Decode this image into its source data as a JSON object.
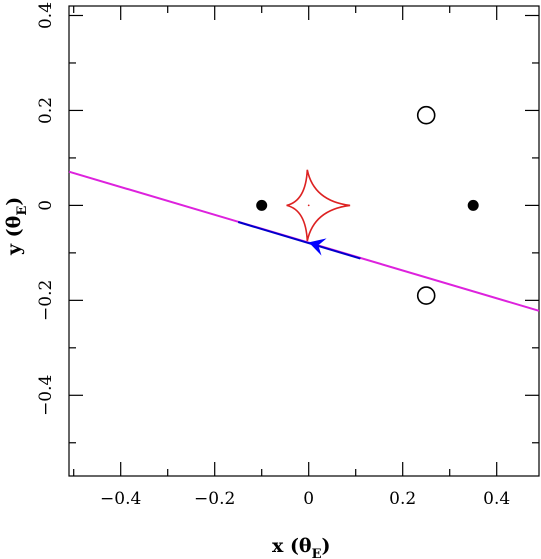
{
  "chart_data": {
    "type": "scatter",
    "title": "",
    "xlabel": "x (θE)",
    "ylabel": "y (θE)",
    "xlabel_parts": {
      "main": "x (θ",
      "sub": "E",
      "end": ")"
    },
    "ylabel_parts": {
      "main": "y (θ",
      "sub": "E",
      "end": ")"
    },
    "xlim": [
      -0.51,
      0.49
    ],
    "ylim": [
      -0.57,
      0.42
    ],
    "xticks": [
      -0.4,
      -0.2,
      0,
      0.2,
      0.4
    ],
    "yticks": [
      -0.4,
      -0.2,
      0,
      0.2,
      0.4
    ],
    "xtick_labels": [
      "−0.4",
      "−0.2",
      "0",
      "0.2",
      "0.4"
    ],
    "ytick_labels": [
      "−0.4",
      "−0.2",
      "0",
      "0.2",
      "0.4"
    ],
    "grid": false,
    "lenses": {
      "x": [
        -0.1,
        0.35
      ],
      "y": [
        0,
        0
      ],
      "color": "#000000"
    },
    "images": {
      "x": [
        0.25,
        0.25
      ],
      "y": [
        0.19,
        -0.19
      ],
      "color": "#000000"
    },
    "caustic": {
      "color": "#dd2222",
      "center": [
        0.0,
        0.0
      ],
      "cusps": [
        [
          -0.047,
          0.0
        ],
        [
          0.088,
          0.0
        ],
        [
          -0.003,
          0.075
        ],
        [
          -0.003,
          -0.075
        ]
      ]
    },
    "trajectory": {
      "color": "#dd22dd",
      "start": [
        -0.51,
        0.071
      ],
      "end": [
        0.49,
        -0.222
      ]
    },
    "trajectory_highlight": {
      "color": "#0000cc",
      "start": [
        -0.15,
        -0.035
      ],
      "end": [
        0.11,
        -0.112
      ]
    },
    "source": {
      "x": 0.0,
      "y": -0.078,
      "direction": "left",
      "color": "#0000ff"
    }
  }
}
